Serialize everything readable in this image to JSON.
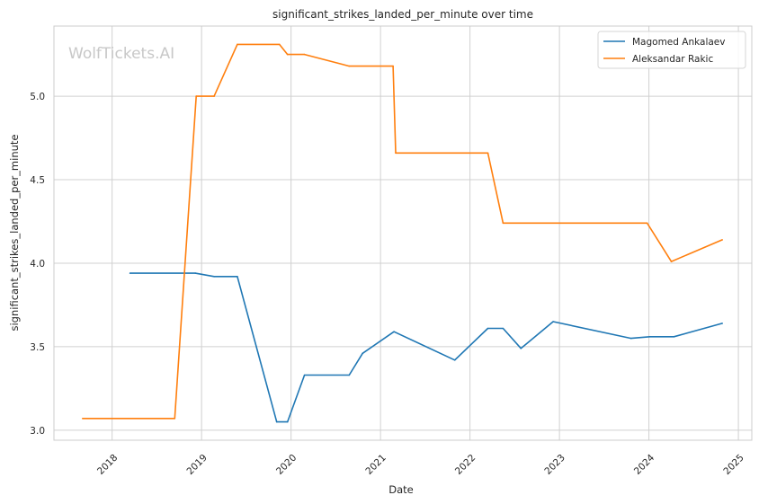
{
  "chart_data": {
    "type": "line",
    "title": "significant_strikes_landed_per_minute over time",
    "xlabel": "Date",
    "ylabel": "significant_strikes_landed_per_minute",
    "watermark": "WolfTickets.AI",
    "xlim": [
      2017.35,
      2025.15
    ],
    "ylim": [
      2.94,
      5.42
    ],
    "x_ticks": [
      2018,
      2019,
      2020,
      2021,
      2022,
      2023,
      2024,
      2025
    ],
    "x_tick_labels": [
      "2018",
      "2019",
      "2020",
      "2021",
      "2022",
      "2023",
      "2024",
      "2025"
    ],
    "y_ticks": [
      3.0,
      3.5,
      4.0,
      4.5,
      5.0
    ],
    "y_tick_labels": [
      "3.0",
      "3.5",
      "4.0",
      "4.5",
      "5.0"
    ],
    "grid": true,
    "legend_position": "top-right",
    "series": [
      {
        "name": "Magomed Ankalaev",
        "color": "#1f77b4",
        "points": [
          [
            2018.2,
            3.94
          ],
          [
            2018.93,
            3.94
          ],
          [
            2019.14,
            3.92
          ],
          [
            2019.4,
            3.92
          ],
          [
            2019.84,
            3.05
          ],
          [
            2019.96,
            3.05
          ],
          [
            2020.15,
            3.33
          ],
          [
            2020.65,
            3.33
          ],
          [
            2020.8,
            3.46
          ],
          [
            2021.15,
            3.59
          ],
          [
            2021.83,
            3.42
          ],
          [
            2022.2,
            3.61
          ],
          [
            2022.37,
            3.61
          ],
          [
            2022.57,
            3.49
          ],
          [
            2022.93,
            3.65
          ],
          [
            2023.8,
            3.55
          ],
          [
            2024.01,
            3.56
          ],
          [
            2024.28,
            3.56
          ],
          [
            2024.82,
            3.64
          ]
        ]
      },
      {
        "name": "Aleksandar Rakic",
        "color": "#ff7f0e",
        "points": [
          [
            2017.67,
            3.07
          ],
          [
            2018.7,
            3.07
          ],
          [
            2018.94,
            5.0
          ],
          [
            2019.14,
            5.0
          ],
          [
            2019.4,
            5.31
          ],
          [
            2019.87,
            5.31
          ],
          [
            2019.96,
            5.25
          ],
          [
            2020.15,
            5.25
          ],
          [
            2020.65,
            5.18
          ],
          [
            2021.14,
            5.18
          ],
          [
            2021.17,
            4.66
          ],
          [
            2022.2,
            4.66
          ],
          [
            2022.37,
            4.24
          ],
          [
            2023.98,
            4.24
          ],
          [
            2024.25,
            4.01
          ],
          [
            2024.82,
            4.14
          ]
        ]
      }
    ]
  }
}
